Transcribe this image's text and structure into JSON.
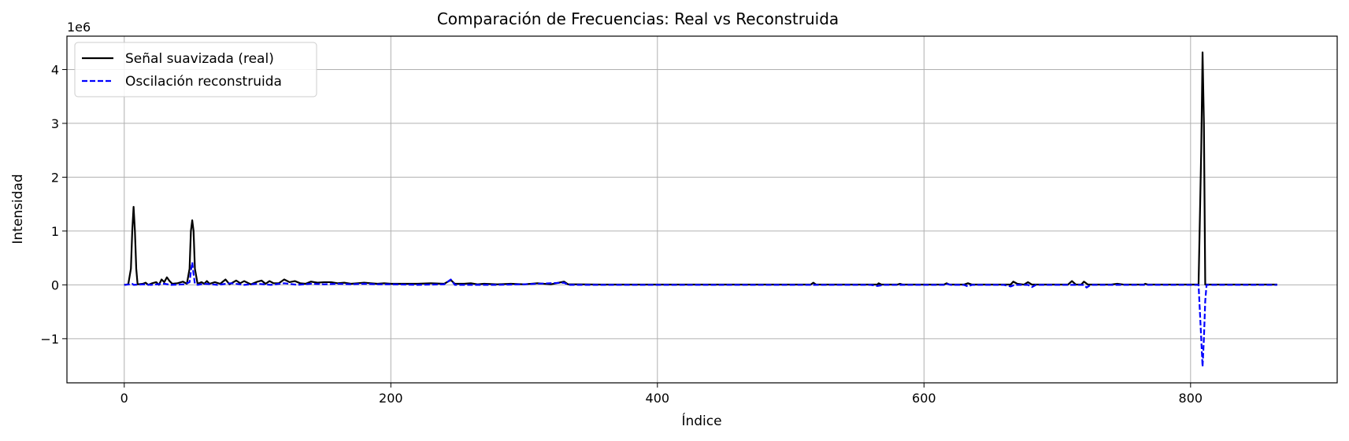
{
  "chart_data": {
    "type": "line",
    "title": "Comparación de Frecuencias: Real vs Reconstruida",
    "xlabel": "Índice",
    "ylabel": "Intensidad",
    "y_offset_label": "1e6",
    "xlim": [
      -43,
      910
    ],
    "ylim": [
      -1.82,
      4.62
    ],
    "xticks": [
      0,
      200,
      400,
      600,
      800
    ],
    "xtick_labels": [
      "0",
      "200",
      "400",
      "600",
      "800"
    ],
    "yticks": [
      -1,
      0,
      1,
      2,
      3,
      4
    ],
    "ytick_labels": [
      "−1",
      "0",
      "1",
      "2",
      "3",
      "4"
    ],
    "grid": true,
    "legend_position": "upper-left",
    "series": [
      {
        "name": "Señal suavizada (real)",
        "color": "#000000",
        "dash": "solid",
        "points": [
          [
            0,
            0.0
          ],
          [
            3,
            0.01
          ],
          [
            5,
            0.3
          ],
          [
            6,
            1.0
          ],
          [
            7,
            1.45
          ],
          [
            8,
            1.0
          ],
          [
            9,
            0.3
          ],
          [
            10,
            0.01
          ],
          [
            14,
            0.02
          ],
          [
            16,
            0.04
          ],
          [
            18,
            0.0
          ],
          [
            21,
            0.03
          ],
          [
            24,
            0.05
          ],
          [
            26,
            0.0
          ],
          [
            28,
            0.1
          ],
          [
            30,
            0.05
          ],
          [
            32,
            0.14
          ],
          [
            34,
            0.07
          ],
          [
            36,
            0.02
          ],
          [
            40,
            0.03
          ],
          [
            44,
            0.06
          ],
          [
            47,
            0.02
          ],
          [
            49,
            0.3
          ],
          [
            50,
            1.0
          ],
          [
            51,
            1.2
          ],
          [
            52,
            1.0
          ],
          [
            53,
            0.3
          ],
          [
            55,
            0.02
          ],
          [
            58,
            0.05
          ],
          [
            60,
            0.02
          ],
          [
            62,
            0.07
          ],
          [
            64,
            0.02
          ],
          [
            68,
            0.05
          ],
          [
            72,
            0.02
          ],
          [
            76,
            0.1
          ],
          [
            79,
            0.01
          ],
          [
            84,
            0.08
          ],
          [
            87,
            0.03
          ],
          [
            90,
            0.07
          ],
          [
            95,
            0.01
          ],
          [
            100,
            0.06
          ],
          [
            103,
            0.08
          ],
          [
            106,
            0.02
          ],
          [
            109,
            0.07
          ],
          [
            112,
            0.03
          ],
          [
            116,
            0.03
          ],
          [
            120,
            0.1
          ],
          [
            124,
            0.05
          ],
          [
            128,
            0.07
          ],
          [
            132,
            0.03
          ],
          [
            136,
            0.02
          ],
          [
            140,
            0.06
          ],
          [
            145,
            0.04
          ],
          [
            150,
            0.05
          ],
          [
            155,
            0.05
          ],
          [
            160,
            0.03
          ],
          [
            165,
            0.04
          ],
          [
            170,
            0.02
          ],
          [
            175,
            0.03
          ],
          [
            180,
            0.04
          ],
          [
            185,
            0.03
          ],
          [
            190,
            0.02
          ],
          [
            195,
            0.03
          ],
          [
            200,
            0.02
          ],
          [
            210,
            0.02
          ],
          [
            220,
            0.02
          ],
          [
            230,
            0.03
          ],
          [
            240,
            0.02
          ],
          [
            245,
            0.09
          ],
          [
            248,
            0.02
          ],
          [
            255,
            0.02
          ],
          [
            260,
            0.03
          ],
          [
            265,
            0.01
          ],
          [
            270,
            0.02
          ],
          [
            280,
            0.01
          ],
          [
            290,
            0.02
          ],
          [
            300,
            0.01
          ],
          [
            310,
            0.03
          ],
          [
            320,
            0.01
          ],
          [
            330,
            0.06
          ],
          [
            333,
            0.01
          ],
          [
            340,
            0.01
          ],
          [
            360,
            0.005
          ],
          [
            380,
            0.005
          ],
          [
            400,
            0.005
          ],
          [
            450,
            0.005
          ],
          [
            500,
            0.005
          ],
          [
            515,
            0.005
          ],
          [
            517,
            0.04
          ],
          [
            519,
            0.005
          ],
          [
            540,
            0.005
          ],
          [
            565,
            0.005
          ],
          [
            566,
            0.03
          ],
          [
            568,
            0.005
          ],
          [
            580,
            0.005
          ],
          [
            582,
            0.02
          ],
          [
            584,
            0.005
          ],
          [
            615,
            0.005
          ],
          [
            617,
            0.03
          ],
          [
            619,
            0.005
          ],
          [
            630,
            0.005
          ],
          [
            633,
            0.03
          ],
          [
            636,
            0.005
          ],
          [
            665,
            0.005
          ],
          [
            667,
            0.06
          ],
          [
            670,
            0.02
          ],
          [
            675,
            0.005
          ],
          [
            678,
            0.05
          ],
          [
            681,
            0.005
          ],
          [
            708,
            0.005
          ],
          [
            711,
            0.07
          ],
          [
            714,
            0.005
          ],
          [
            718,
            0.005
          ],
          [
            720,
            0.06
          ],
          [
            723,
            0.005
          ],
          [
            740,
            0.005
          ],
          [
            745,
            0.02
          ],
          [
            750,
            0.005
          ],
          [
            765,
            0.005
          ],
          [
            766,
            0.02
          ],
          [
            768,
            0.005
          ],
          [
            795,
            0.005
          ],
          [
            806,
            0.005
          ],
          [
            808,
            2.5
          ],
          [
            809,
            4.32
          ],
          [
            810,
            3.0
          ],
          [
            811,
            0.005
          ],
          [
            830,
            0.005
          ],
          [
            865,
            0.005
          ]
        ]
      },
      {
        "name": "Oscilación reconstruida",
        "color": "#0000ff",
        "dash": "dashed",
        "points": [
          [
            0,
            0.0
          ],
          [
            5,
            0.01
          ],
          [
            6,
            0.02
          ],
          [
            7,
            0.0
          ],
          [
            15,
            0.01
          ],
          [
            20,
            0.0
          ],
          [
            30,
            0.02
          ],
          [
            35,
            0.0
          ],
          [
            45,
            0.01
          ],
          [
            49,
            0.05
          ],
          [
            50,
            0.25
          ],
          [
            51,
            0.42
          ],
          [
            52,
            0.2
          ],
          [
            53,
            0.02
          ],
          [
            55,
            0.0
          ],
          [
            60,
            0.02
          ],
          [
            70,
            0.0
          ],
          [
            80,
            0.03
          ],
          [
            90,
            0.0
          ],
          [
            100,
            0.02
          ],
          [
            110,
            0.0
          ],
          [
            120,
            0.03
          ],
          [
            130,
            0.0
          ],
          [
            140,
            0.02
          ],
          [
            150,
            0.01
          ],
          [
            160,
            0.02
          ],
          [
            170,
            0.01
          ],
          [
            180,
            0.02
          ],
          [
            190,
            0.01
          ],
          [
            200,
            0.01
          ],
          [
            220,
            0.0
          ],
          [
            240,
            0.01
          ],
          [
            245,
            0.1
          ],
          [
            248,
            0.0
          ],
          [
            260,
            0.0
          ],
          [
            280,
            0.0
          ],
          [
            300,
            0.01
          ],
          [
            330,
            0.04
          ],
          [
            333,
            0.0
          ],
          [
            360,
            0.0
          ],
          [
            400,
            0.0
          ],
          [
            500,
            0.0
          ],
          [
            560,
            0.0
          ],
          [
            565,
            -0.02
          ],
          [
            570,
            0.0
          ],
          [
            600,
            0.0
          ],
          [
            615,
            0.0
          ],
          [
            617,
            0.02
          ],
          [
            620,
            0.0
          ],
          [
            630,
            0.0
          ],
          [
            633,
            -0.03
          ],
          [
            636,
            0.0
          ],
          [
            660,
            0.0
          ],
          [
            665,
            -0.03
          ],
          [
            668,
            0.0
          ],
          [
            678,
            0.0
          ],
          [
            681,
            -0.04
          ],
          [
            684,
            0.0
          ],
          [
            720,
            0.0
          ],
          [
            722,
            -0.05
          ],
          [
            725,
            0.0
          ],
          [
            760,
            0.0
          ],
          [
            790,
            0.0
          ],
          [
            800,
            0.0
          ],
          [
            806,
            0.0
          ],
          [
            807,
            -0.5
          ],
          [
            808,
            -1.0
          ],
          [
            809,
            -1.52
          ],
          [
            810,
            -1.0
          ],
          [
            811,
            -0.3
          ],
          [
            812,
            0.0
          ],
          [
            830,
            0.0
          ],
          [
            865,
            0.0
          ]
        ]
      }
    ]
  }
}
